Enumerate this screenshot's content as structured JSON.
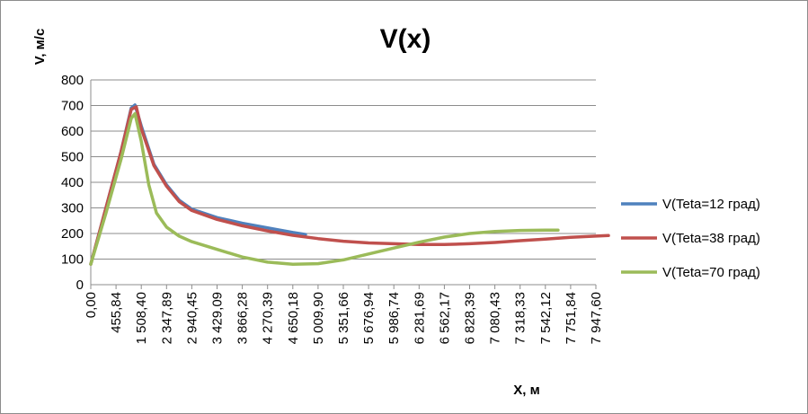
{
  "chart_data": {
    "type": "line",
    "title": "V(x)",
    "xlabel": "X, м",
    "ylabel": "V, м/с",
    "ylim": [
      0,
      800
    ],
    "y_ticks": [
      "0",
      "100",
      "200",
      "300",
      "400",
      "500",
      "600",
      "700",
      "800"
    ],
    "x_ticks": [
      "0,00",
      "455,84",
      "1 508,40",
      "2 347,89",
      "2 940,45",
      "3 429,09",
      "3 866,28",
      "4 270,39",
      "4 650,18",
      "5 009,90",
      "5 351,66",
      "5 676,94",
      "5 986,74",
      "6 281,69",
      "6 562,17",
      "6 828,39",
      "7 080,43",
      "7 318,33",
      "7 542,12",
      "7 751,84",
      "7 947,60"
    ],
    "x_index_range": [
      0,
      20
    ],
    "grid": "horizontal",
    "legend_position": "right",
    "series": [
      {
        "name": "V(Teta=12 град)",
        "color": "#4f81bd",
        "points": [
          [
            0.0,
            80
          ],
          [
            0.6,
            300
          ],
          [
            1.2,
            520
          ],
          [
            1.6,
            690
          ],
          [
            1.75,
            702
          ],
          [
            2.0,
            620
          ],
          [
            2.5,
            470
          ],
          [
            3.0,
            390
          ],
          [
            3.5,
            330
          ],
          [
            4.0,
            295
          ],
          [
            5.0,
            262
          ],
          [
            6.0,
            240
          ],
          [
            7.0,
            222
          ],
          [
            8.0,
            204
          ],
          [
            8.5,
            196
          ]
        ]
      },
      {
        "name": "V(Teta=38 град)",
        "color": "#c0504d",
        "points": [
          [
            0.0,
            80
          ],
          [
            0.6,
            300
          ],
          [
            1.2,
            520
          ],
          [
            1.6,
            685
          ],
          [
            1.8,
            695
          ],
          [
            2.0,
            610
          ],
          [
            2.5,
            465
          ],
          [
            3.0,
            385
          ],
          [
            3.5,
            325
          ],
          [
            4.0,
            290
          ],
          [
            5.0,
            255
          ],
          [
            6.0,
            230
          ],
          [
            7.0,
            210
          ],
          [
            8.0,
            193
          ],
          [
            9.0,
            180
          ],
          [
            10.0,
            170
          ],
          [
            11.0,
            163
          ],
          [
            12.0,
            160
          ],
          [
            13.0,
            157
          ],
          [
            14.0,
            157
          ],
          [
            15.0,
            160
          ],
          [
            16.0,
            165
          ],
          [
            17.0,
            172
          ],
          [
            18.0,
            178
          ],
          [
            19.0,
            185
          ],
          [
            20.0,
            190
          ],
          [
            20.5,
            192
          ]
        ]
      },
      {
        "name": "V(Teta=70 град)",
        "color": "#9bbb59",
        "points": [
          [
            0.0,
            80
          ],
          [
            0.6,
            280
          ],
          [
            1.2,
            490
          ],
          [
            1.6,
            650
          ],
          [
            1.75,
            668
          ],
          [
            2.0,
            560
          ],
          [
            2.3,
            390
          ],
          [
            2.6,
            280
          ],
          [
            3.0,
            225
          ],
          [
            3.5,
            190
          ],
          [
            4.0,
            168
          ],
          [
            5.0,
            138
          ],
          [
            6.0,
            108
          ],
          [
            7.0,
            88
          ],
          [
            8.0,
            80
          ],
          [
            9.0,
            82
          ],
          [
            10.0,
            97
          ],
          [
            11.0,
            120
          ],
          [
            12.0,
            143
          ],
          [
            13.0,
            166
          ],
          [
            14.0,
            186
          ],
          [
            15.0,
            200
          ],
          [
            16.0,
            208
          ],
          [
            17.0,
            212
          ],
          [
            18.0,
            213
          ],
          [
            18.5,
            213
          ]
        ]
      }
    ]
  }
}
